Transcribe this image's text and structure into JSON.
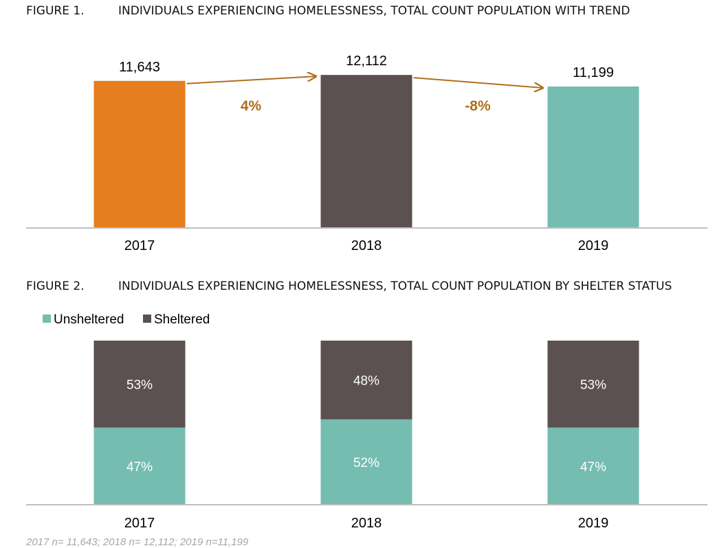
{
  "chart_data": [
    {
      "type": "bar",
      "figure_number": "FIGURE 1.",
      "title": "INDIVIDUALS EXPERIENCING HOMELESSNESS, TOTAL COUNT POPULATION WITH TREND",
      "categories": [
        "2017",
        "2018",
        "2019"
      ],
      "values": [
        11643,
        12112,
        11199
      ],
      "value_labels": [
        "11,643",
        "12,112",
        "11,199"
      ],
      "colors": [
        "#E47E1E",
        "#5A5150",
        "#74BDB0"
      ],
      "trend_labels": [
        "4%",
        "-8%"
      ],
      "trend_color": "#B06D1E",
      "ylim": [
        0,
        12500
      ],
      "grid": false
    },
    {
      "type": "bar",
      "stacked": true,
      "percent": true,
      "figure_number": "FIGURE 2.",
      "title": "INDIVIDUALS EXPERIENCING HOMELESSNESS, TOTAL COUNT POPULATION BY SHELTER STATUS",
      "categories": [
        "2017",
        "2018",
        "2019"
      ],
      "series": [
        {
          "name": "Unsheltered",
          "values": [
            47,
            52,
            47
          ],
          "labels": [
            "47%",
            "52%",
            "47%"
          ],
          "color": "#74BDB0"
        },
        {
          "name": "Sheltered",
          "values": [
            53,
            48,
            53
          ],
          "labels": [
            "53%",
            "48%",
            "53%"
          ],
          "color": "#5A5150"
        }
      ],
      "legend_position": "top-left",
      "ylim": [
        0,
        100
      ],
      "note": "2017 n= 11,643; 2018 n= 12,112; 2019 n=11,199"
    }
  ]
}
